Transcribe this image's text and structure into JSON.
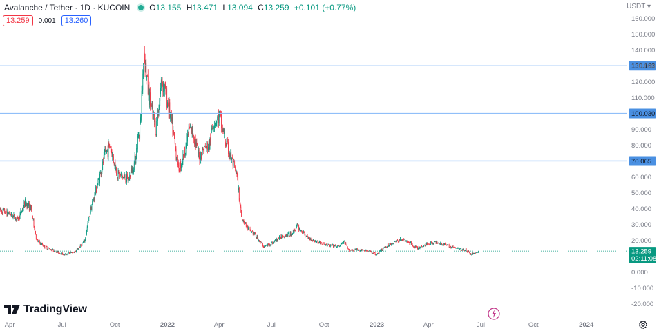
{
  "header": {
    "symbol_title": "Avalanche / Tether · 1D · KUCOIN",
    "ohlc": [
      {
        "label": "O",
        "value": "13.155"
      },
      {
        "label": "H",
        "value": "13.471"
      },
      {
        "label": "L",
        "value": "13.094"
      },
      {
        "label": "C",
        "value": "13.259"
      },
      {
        "label": "",
        "value": "+0.101 (+0.77%)"
      }
    ],
    "sell_price": "13.259",
    "spread": "0.001",
    "buy_price": "13.260",
    "currency": "USDT"
  },
  "brand": {
    "name": "TradingView"
  },
  "colors": {
    "up": "#089981",
    "down": "#f23645",
    "level_line": "#90bff9",
    "level_badge": "#4a90e2",
    "last_price": "#089981"
  },
  "chart_data": {
    "type": "candlestick",
    "symbol": "Avalanche / Tether",
    "interval": "1D",
    "exchange": "KUCOIN",
    "y_axis": {
      "unit": "USDT",
      "range": [
        -24,
        162
      ],
      "ticks": [
        {
          "value": 160,
          "label": "160.000"
        },
        {
          "value": 150,
          "label": "150.000"
        },
        {
          "value": 140,
          "label": "140.000"
        },
        {
          "value": 130,
          "label": "130.000"
        },
        {
          "value": 120,
          "label": "120.000"
        },
        {
          "value": 110,
          "label": "110.000"
        },
        {
          "value": 90,
          "label": "90.000"
        },
        {
          "value": 80,
          "label": "80.000"
        },
        {
          "value": 60,
          "label": "60.000"
        },
        {
          "value": 50,
          "label": "50.000"
        },
        {
          "value": 40,
          "label": "40.000"
        },
        {
          "value": 30,
          "label": "30.000"
        },
        {
          "value": 20,
          "label": "20.000"
        },
        {
          "value": 0,
          "label": "0.000"
        },
        {
          "value": -10,
          "label": "-10.000"
        },
        {
          "value": -20,
          "label": "-20.000"
        }
      ]
    },
    "x_axis": {
      "range": [
        "2021-03-15",
        "2024-03-10"
      ],
      "ticks": [
        {
          "date": "2021-04-01",
          "label": "Apr",
          "bold": false
        },
        {
          "date": "2021-07-01",
          "label": "Jul",
          "bold": false
        },
        {
          "date": "2021-10-01",
          "label": "Oct",
          "bold": false
        },
        {
          "date": "2022-01-01",
          "label": "2022",
          "bold": true
        },
        {
          "date": "2022-04-01",
          "label": "Apr",
          "bold": false
        },
        {
          "date": "2022-07-01",
          "label": "Jul",
          "bold": false
        },
        {
          "date": "2022-10-01",
          "label": "Oct",
          "bold": false
        },
        {
          "date": "2023-01-01",
          "label": "2023",
          "bold": true
        },
        {
          "date": "2023-04-01",
          "label": "Apr",
          "bold": false
        },
        {
          "date": "2023-07-01",
          "label": "Jul",
          "bold": false
        },
        {
          "date": "2023-10-01",
          "label": "Oct",
          "bold": false
        },
        {
          "date": "2024-01-01",
          "label": "2024",
          "bold": true
        }
      ]
    },
    "price_path": [
      [
        "2021-03-15",
        39
      ],
      [
        "2021-04-01",
        37
      ],
      [
        "2021-04-15",
        33
      ],
      [
        "2021-04-28",
        44
      ],
      [
        "2021-05-08",
        40
      ],
      [
        "2021-05-18",
        20
      ],
      [
        "2021-06-01",
        16
      ],
      [
        "2021-06-20",
        13
      ],
      [
        "2021-07-05",
        11
      ],
      [
        "2021-07-25",
        13
      ],
      [
        "2021-08-10",
        20
      ],
      [
        "2021-08-20",
        40
      ],
      [
        "2021-09-01",
        55
      ],
      [
        "2021-09-15",
        75
      ],
      [
        "2021-09-23",
        80
      ],
      [
        "2021-10-05",
        62
      ],
      [
        "2021-10-15",
        60
      ],
      [
        "2021-10-25",
        58
      ],
      [
        "2021-11-05",
        70
      ],
      [
        "2021-11-15",
        95
      ],
      [
        "2021-11-21",
        140
      ],
      [
        "2021-11-28",
        115
      ],
      [
        "2021-12-05",
        100
      ],
      [
        "2021-12-12",
        90
      ],
      [
        "2021-12-22",
        122
      ],
      [
        "2022-01-01",
        108
      ],
      [
        "2022-01-10",
        90
      ],
      [
        "2022-01-20",
        65
      ],
      [
        "2022-01-28",
        72
      ],
      [
        "2022-02-08",
        90
      ],
      [
        "2022-02-15",
        88
      ],
      [
        "2022-02-25",
        72
      ],
      [
        "2022-03-05",
        78
      ],
      [
        "2022-03-15",
        80
      ],
      [
        "2022-03-22",
        95
      ],
      [
        "2022-04-02",
        98
      ],
      [
        "2022-04-12",
        82
      ],
      [
        "2022-04-22",
        72
      ],
      [
        "2022-05-02",
        60
      ],
      [
        "2022-05-10",
        35
      ],
      [
        "2022-05-20",
        28
      ],
      [
        "2022-06-01",
        24
      ],
      [
        "2022-06-18",
        16
      ],
      [
        "2022-07-01",
        18
      ],
      [
        "2022-07-20",
        23
      ],
      [
        "2022-08-05",
        24
      ],
      [
        "2022-08-15",
        29
      ],
      [
        "2022-09-01",
        22
      ],
      [
        "2022-09-20",
        19
      ],
      [
        "2022-10-05",
        17
      ],
      [
        "2022-10-25",
        16
      ],
      [
        "2022-11-05",
        19
      ],
      [
        "2022-11-12",
        14
      ],
      [
        "2022-12-01",
        14
      ],
      [
        "2022-12-20",
        13
      ],
      [
        "2023-01-01",
        11
      ],
      [
        "2023-01-15",
        16
      ],
      [
        "2023-02-01",
        19
      ],
      [
        "2023-02-12",
        21
      ],
      [
        "2023-03-01",
        18
      ],
      [
        "2023-03-12",
        15
      ],
      [
        "2023-04-01",
        18
      ],
      [
        "2023-04-18",
        19
      ],
      [
        "2023-05-01",
        17
      ],
      [
        "2023-05-20",
        15
      ],
      [
        "2023-06-05",
        14
      ],
      [
        "2023-06-14",
        11
      ],
      [
        "2023-06-28",
        13.26
      ]
    ],
    "horizontal_levels": [
      {
        "value": 130.163,
        "label": "130.163"
      },
      {
        "value": 100.03,
        "label": "100.030"
      },
      {
        "value": 70.065,
        "label": "70.065"
      }
    ],
    "last_price": {
      "value": 13.259,
      "label": "13.259",
      "countdown": "02:11:08"
    }
  }
}
